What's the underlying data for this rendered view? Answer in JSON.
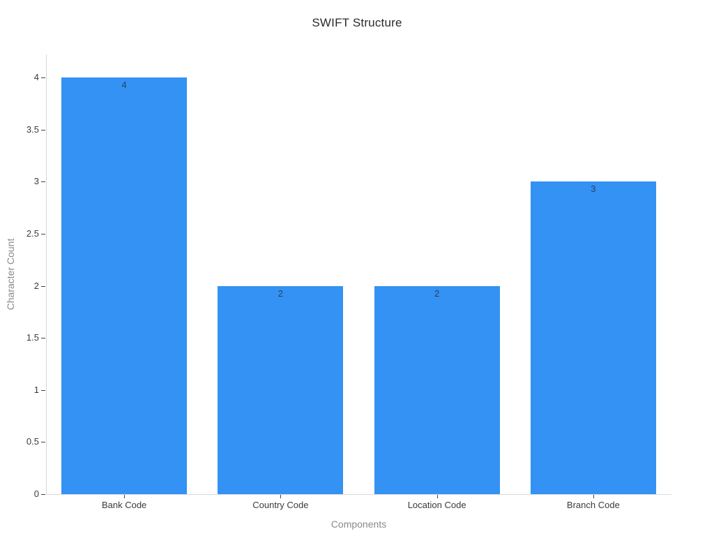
{
  "chart_data": {
    "type": "bar",
    "title": "SWIFT Structure",
    "xlabel": "Components",
    "ylabel": "Character Count",
    "categories": [
      "Bank Code",
      "Country Code",
      "Location Code",
      "Branch Code"
    ],
    "values": [
      4,
      2,
      2,
      3
    ],
    "bar_labels": [
      "4",
      "2",
      "2",
      "3"
    ],
    "ytick_values": [
      0,
      0.5,
      1,
      1.5,
      2,
      2.5,
      3,
      3.5,
      4
    ],
    "ytick_labels": [
      "0",
      "0.5",
      "1",
      "1.5",
      "2",
      "2.5",
      "3",
      "3.5",
      "4"
    ],
    "ylim": [
      0,
      4.222
    ],
    "grid": false,
    "legend_position": "none",
    "colors": {
      "bar": "#3392f3",
      "title_text": "#2a2a2a",
      "tick_text": "#3a3a3a",
      "axis_label_text": "#8a8a8a",
      "bar_label_text": "#2a3f5f",
      "axis_line": "#d9d9d9",
      "tick_mark": "#444444",
      "background": "#ffffff"
    }
  }
}
